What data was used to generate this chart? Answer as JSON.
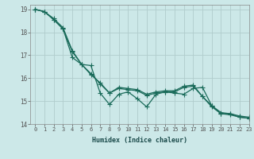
{
  "xlabel": "Humidex (Indice chaleur)",
  "xlim": [
    -0.5,
    23
  ],
  "ylim": [
    14,
    19.2
  ],
  "yticks": [
    14,
    15,
    16,
    17,
    18,
    19
  ],
  "xticks": [
    0,
    1,
    2,
    3,
    4,
    5,
    6,
    7,
    8,
    9,
    10,
    11,
    12,
    13,
    14,
    15,
    16,
    17,
    18,
    19,
    20,
    21,
    22,
    23
  ],
  "bg_color": "#cce8e8",
  "grid_color": "#b0cccc",
  "line_color": "#1a6b5a",
  "line1_y": [
    19.0,
    18.9,
    18.6,
    18.2,
    17.2,
    16.6,
    16.2,
    15.75,
    15.35,
    15.6,
    15.55,
    15.5,
    15.3,
    15.4,
    15.45,
    15.45,
    15.65,
    15.7,
    15.2,
    14.8,
    14.5,
    14.45,
    14.35,
    14.3
  ],
  "line2_y": [
    19.0,
    18.9,
    18.55,
    18.15,
    17.15,
    16.6,
    16.15,
    15.8,
    15.35,
    15.55,
    15.5,
    15.45,
    15.25,
    15.35,
    15.4,
    15.4,
    15.6,
    15.65,
    15.2,
    14.75,
    14.45,
    14.4,
    14.3,
    14.25
  ],
  "line3_y": [
    19.0,
    18.9,
    18.55,
    18.15,
    16.9,
    16.6,
    16.55,
    15.35,
    14.85,
    15.3,
    15.4,
    15.1,
    14.75,
    15.3,
    15.4,
    15.35,
    15.3,
    15.55,
    15.6,
    14.8,
    14.45,
    14.45,
    14.3,
    14.25
  ]
}
